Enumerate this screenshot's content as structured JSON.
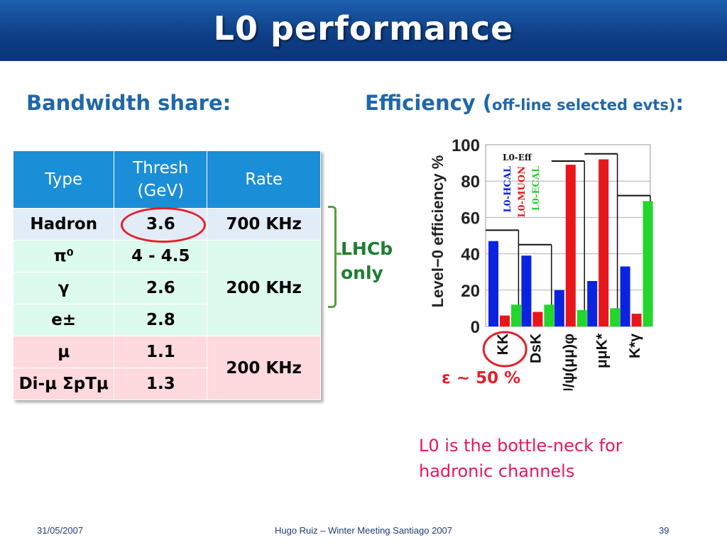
{
  "slide": {
    "title": "L0 performance",
    "footer_date": "31/05/2007",
    "footer_center": "Hugo Ruiz – Winter Meeting Santiago 2007",
    "footer_page": "39"
  },
  "left": {
    "heading": "Bandwidth share:",
    "table": {
      "headers": [
        "Type",
        "Thresh (GeV)",
        "Rate"
      ],
      "rows": [
        {
          "type": "Hadron",
          "thresh": "3.6",
          "rate": "700 KHz"
        },
        {
          "type": "π⁰",
          "thresh": "4 - 4.5",
          "rate": "200 KHz"
        },
        {
          "type": "γ",
          "thresh": "2.6"
        },
        {
          "type": "e±",
          "thresh": "2.8"
        },
        {
          "type": "μ",
          "thresh": "1.1",
          "rate": "200 KHz"
        },
        {
          "type": "Di-μ ΣpTμ",
          "thresh": "1.3"
        }
      ]
    },
    "lhcb_line1": "LHCb",
    "lhcb_line2": "only"
  },
  "right": {
    "heading_main": "Efficiency (",
    "heading_sub": "off-line selected evts)",
    "heading_end": ":",
    "eff_label": "ε ~ 50 %",
    "note_line1": "L0 is the bottle-neck for",
    "note_line2": "hadronic channels"
  },
  "chart_data": {
    "type": "bar",
    "ylabel": "Level−0 efficiency %",
    "ylim": [
      0,
      100
    ],
    "yticks": [
      "0",
      "20",
      "40",
      "60",
      "80",
      "100"
    ],
    "legend_title": "L0-Eff",
    "series": [
      {
        "name": "L0-HCAL",
        "color": "#0a23e0",
        "values": [
          47,
          39,
          20,
          25,
          33
        ]
      },
      {
        "name": "L0-MUON",
        "color": "#e8161b",
        "values": [
          6,
          8,
          89,
          92,
          7
        ]
      },
      {
        "name": "L0-ECAL",
        "color": "#22d62a",
        "values": [
          12,
          12,
          9,
          10,
          69
        ]
      }
    ],
    "categories": [
      "KK",
      "DsK",
      "J/ψ(μμ)φ",
      "μμK*",
      "K*γ"
    ],
    "totals": [
      53,
      45,
      91,
      95,
      72
    ]
  }
}
